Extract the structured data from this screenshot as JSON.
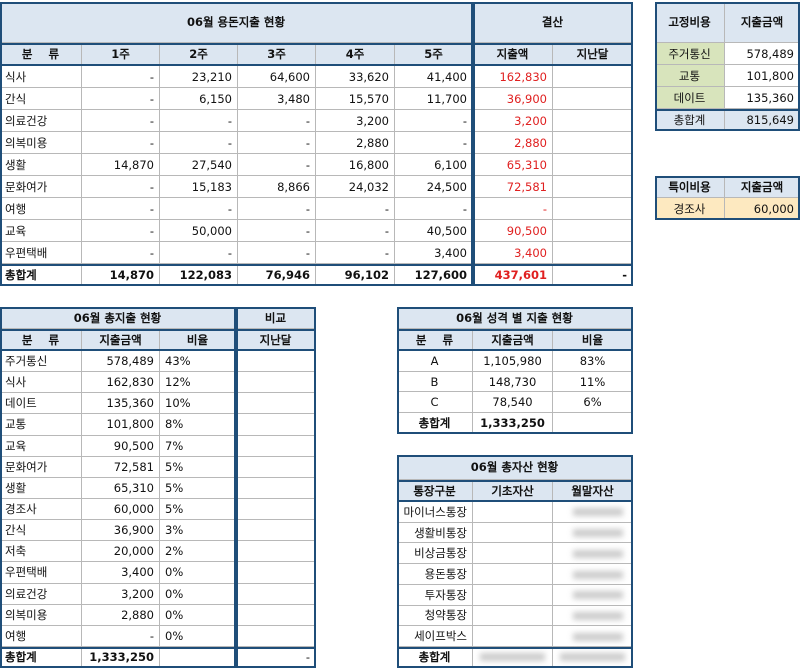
{
  "spending": {
    "title": "06월 용돈지출 현황",
    "summary_title": "결산",
    "headers": [
      "분    류",
      "1주",
      "2주",
      "3주",
      "4주",
      "5주",
      "지출액",
      "지난달"
    ],
    "rows": [
      {
        "label": "식사",
        "values": [
          "-",
          "23,210",
          "64,600",
          "33,620",
          "41,400",
          "162,830"
        ]
      },
      {
        "label": "간식",
        "values": [
          "-",
          "6,150",
          "3,480",
          "15,570",
          "11,700",
          "36,900"
        ]
      },
      {
        "label": "의료건강",
        "values": [
          "-",
          "-",
          "-",
          "3,200",
          "-",
          "3,200"
        ]
      },
      {
        "label": "의복미용",
        "values": [
          "-",
          "-",
          "-",
          "2,880",
          "-",
          "2,880"
        ]
      },
      {
        "label": "생활",
        "values": [
          "14,870",
          "27,540",
          "-",
          "16,800",
          "6,100",
          "65,310"
        ]
      },
      {
        "label": "문화여가",
        "values": [
          "-",
          "15,183",
          "8,866",
          "24,032",
          "24,500",
          "72,581"
        ]
      },
      {
        "label": "여행",
        "values": [
          "-",
          "-",
          "-",
          "-",
          "-",
          "-"
        ]
      },
      {
        "label": "교육",
        "values": [
          "-",
          "50,000",
          "-",
          "-",
          "40,500",
          "90,500"
        ]
      },
      {
        "label": "우편택배",
        "values": [
          "-",
          "-",
          "-",
          "-",
          "3,400",
          "3,400"
        ]
      }
    ],
    "total": {
      "label": "총합계",
      "values": [
        "14,870",
        "122,083",
        "76,946",
        "96,102",
        "127,600",
        "437,601",
        "-"
      ]
    }
  },
  "fixed_costs": {
    "headers": [
      "고정비용",
      "지출금액"
    ],
    "rows": [
      [
        "주거통신",
        "578,489"
      ],
      [
        "교통",
        "101,800"
      ],
      [
        "데이트",
        "135,360"
      ]
    ],
    "total": [
      "총합계",
      "815,649"
    ]
  },
  "special_costs": {
    "headers": [
      "특이비용",
      "지출금액"
    ],
    "rows": [
      [
        "경조사",
        "60,000"
      ]
    ]
  },
  "total_spending": {
    "title": "06월 총지출 현황",
    "compare_title": "비교",
    "headers": [
      "분    류",
      "지출금액",
      "비율",
      "지난달"
    ],
    "rows": [
      [
        "주거통신",
        "578,489",
        "43%"
      ],
      [
        "식사",
        "162,830",
        "12%"
      ],
      [
        "데이트",
        "135,360",
        "10%"
      ],
      [
        "교통",
        "101,800",
        "8%"
      ],
      [
        "교육",
        "90,500",
        "7%"
      ],
      [
        "문화여가",
        "72,581",
        "5%"
      ],
      [
        "생활",
        "65,310",
        "5%"
      ],
      [
        "경조사",
        "60,000",
        "5%"
      ],
      [
        "간식",
        "36,900",
        "3%"
      ],
      [
        "저축",
        "20,000",
        "2%"
      ],
      [
        "우편택배",
        "3,400",
        "0%"
      ],
      [
        "의료건강",
        "3,200",
        "0%"
      ],
      [
        "의복미용",
        "2,880",
        "0%"
      ],
      [
        "여행",
        "-",
        "0%"
      ]
    ],
    "total": {
      "label": "총합계",
      "amount": "1,333,250",
      "last_month": "-"
    }
  },
  "by_type": {
    "title": "06월 성격 별 지출 현황",
    "headers": [
      "분    류",
      "지출금액",
      "비율"
    ],
    "rows": [
      [
        "A",
        "1,105,980",
        "83%"
      ],
      [
        "B",
        "148,730",
        "11%"
      ],
      [
        "C",
        "78,540",
        "6%"
      ]
    ],
    "total": [
      "총합계",
      "1,333,250"
    ]
  },
  "assets": {
    "title": "06월 총자산 현황",
    "headers": [
      "통장구분",
      "기초자산",
      "월말자산"
    ],
    "rows": [
      "마이너스통장",
      "생활비통장",
      "비상금통장",
      "용돈통장",
      "투자통장",
      "청약통장",
      "세이프박스"
    ],
    "total": "총합계"
  }
}
